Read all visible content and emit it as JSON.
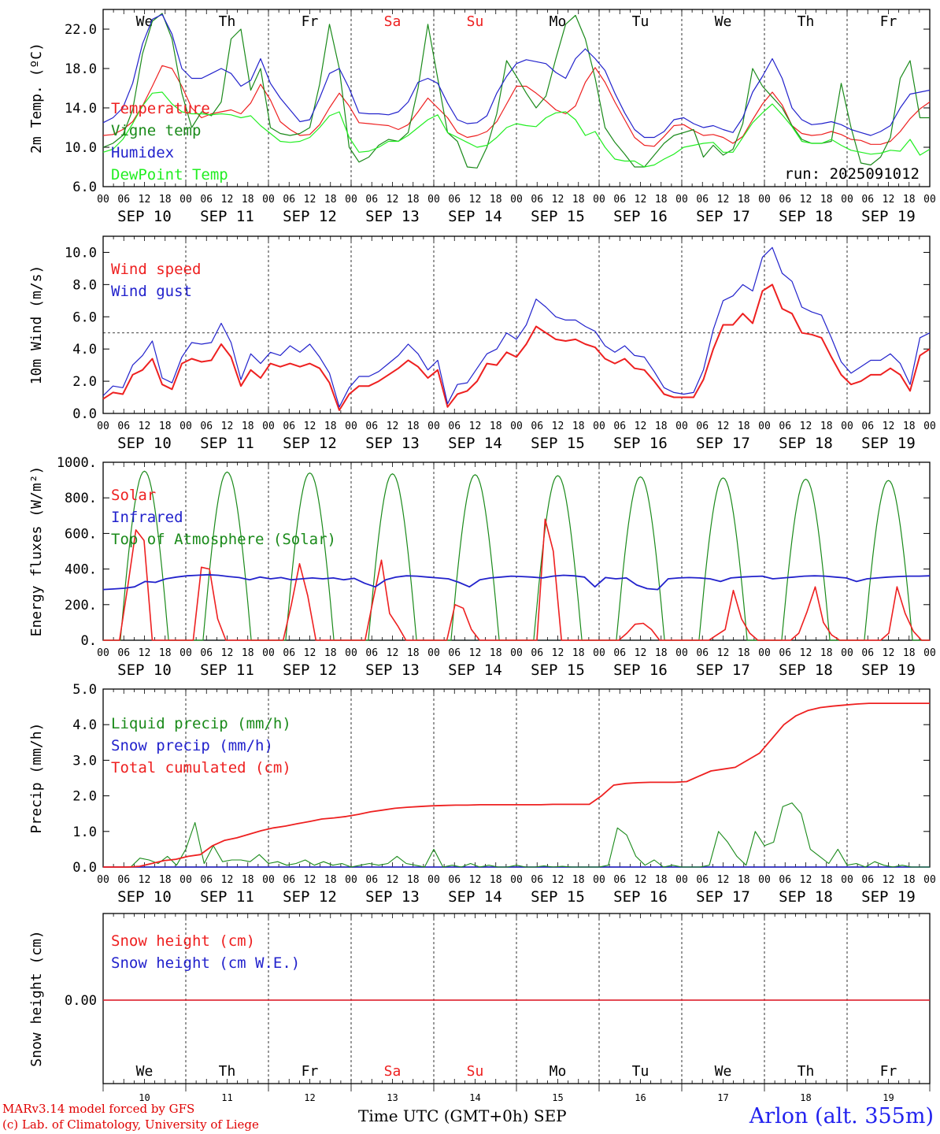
{
  "chart_data": [
    {
      "type": "line",
      "ylabel": "2m Temp. (ºC)",
      "ylim": [
        6.0,
        24.0
      ],
      "yticks": [
        "6.0",
        "10.0",
        "14.0",
        "18.0",
        "22.0"
      ],
      "annotation": "run: 2025091012",
      "series": [
        {
          "name": "Temperature",
          "color": "#ee2020",
          "values": [
            11.2,
            11.3,
            11.8,
            12.6,
            14.2,
            16.2,
            18.3,
            18.0,
            16.2,
            14.0,
            13.0,
            13.4,
            13.6,
            13.8,
            13.4,
            14.5,
            16.4,
            14.8,
            12.6,
            11.8,
            11.2,
            11.3,
            12.3,
            14.0,
            15.5,
            14.2,
            12.5,
            12.4,
            12.3,
            12.2,
            11.8,
            12.3,
            13.6,
            15.0,
            14.0,
            13.0,
            11.5,
            11.0,
            11.2,
            11.6,
            12.6,
            14.4,
            16.2,
            16.2,
            15.5,
            14.7,
            13.8,
            13.4,
            14.2,
            16.6,
            18.1,
            16.6,
            14.6,
            12.8,
            11.0,
            10.2,
            10.1,
            11.1,
            12.2,
            12.3,
            11.7,
            11.2,
            11.3,
            11.0,
            10.4,
            11.1,
            12.8,
            14.4,
            15.6,
            14.3,
            12.2,
            11.4,
            11.2,
            11.3,
            11.6,
            11.3,
            10.8,
            10.7,
            10.3,
            10.3,
            10.6,
            11.6,
            12.9,
            13.9,
            14.6
          ]
        },
        {
          "name": "Vigne temp",
          "color": "#1a8a1a",
          "values": [
            10.0,
            10.4,
            11.2,
            13.8,
            19.5,
            22.8,
            23.6,
            21.0,
            15.5,
            12.0,
            13.6,
            13.2,
            14.6,
            21.0,
            22.0,
            15.8,
            18.0,
            12.0,
            11.4,
            11.2,
            11.4,
            12.0,
            16.4,
            22.5,
            18.0,
            10.0,
            8.5,
            9.0,
            10.2,
            10.8,
            10.6,
            11.5,
            16.0,
            22.5,
            17.0,
            11.5,
            10.6,
            8.0,
            7.9,
            10.0,
            13.4,
            18.8,
            17.2,
            15.5,
            14.0,
            15.2,
            19.0,
            22.5,
            23.4,
            21.0,
            17.0,
            12.0,
            10.5,
            9.3,
            8.0,
            8.0,
            9.2,
            10.4,
            11.2,
            11.5,
            11.8,
            9.0,
            10.2,
            9.2,
            9.8,
            12.4,
            18.0,
            16.2,
            15.1,
            14.0,
            12.2,
            10.8,
            10.4,
            10.4,
            10.6,
            16.5,
            12.0,
            8.4,
            8.2,
            9.0,
            11.0,
            17.0,
            18.8,
            13.0,
            13.0
          ]
        },
        {
          "name": "Humidex",
          "color": "#2222cc",
          "values": [
            12.5,
            13.0,
            14.0,
            16.5,
            20.5,
            23.0,
            23.5,
            21.5,
            18.0,
            17.0,
            17.0,
            17.5,
            18.0,
            17.5,
            16.2,
            16.8,
            19.0,
            16.5,
            15.0,
            13.8,
            12.6,
            12.8,
            15.0,
            17.5,
            18.0,
            16.0,
            13.5,
            13.4,
            13.4,
            13.3,
            13.6,
            14.6,
            16.6,
            17.0,
            16.5,
            14.5,
            12.8,
            12.4,
            12.5,
            13.2,
            15.5,
            17.2,
            18.5,
            18.9,
            18.7,
            18.5,
            17.6,
            17.0,
            19.0,
            20.0,
            19.0,
            17.8,
            15.5,
            13.5,
            11.8,
            11.0,
            11.0,
            11.6,
            12.8,
            13.0,
            12.4,
            12.0,
            12.2,
            11.8,
            11.5,
            13.0,
            15.6,
            17.2,
            19.0,
            17.0,
            14.0,
            12.8,
            12.3,
            12.4,
            12.6,
            12.3,
            11.8,
            11.5,
            11.2,
            11.6,
            12.2,
            14.0,
            15.4,
            15.6,
            15.8
          ]
        },
        {
          "name": "DewPoint Temp",
          "color": "#22ee22",
          "values": [
            9.5,
            9.8,
            10.8,
            12.4,
            14.2,
            15.5,
            15.6,
            14.4,
            13.6,
            13.4,
            13.4,
            13.3,
            13.4,
            13.3,
            13.0,
            13.2,
            12.2,
            11.4,
            10.6,
            10.5,
            10.6,
            11.0,
            12.0,
            13.2,
            13.6,
            11.0,
            9.5,
            9.6,
            10.0,
            10.6,
            10.6,
            11.2,
            12.0,
            12.8,
            13.3,
            11.5,
            11.0,
            10.5,
            10.0,
            10.2,
            11.0,
            12.0,
            12.4,
            12.2,
            12.1,
            13.0,
            13.5,
            13.6,
            12.8,
            11.2,
            11.6,
            10.0,
            8.8,
            8.6,
            8.6,
            8.0,
            8.2,
            8.8,
            9.3,
            10.0,
            10.2,
            10.4,
            10.5,
            9.5,
            9.5,
            11.0,
            12.5,
            13.5,
            14.4,
            13.3,
            12.1,
            10.6,
            10.4,
            10.4,
            10.8,
            10.2,
            9.7,
            9.5,
            9.3,
            9.4,
            9.7,
            9.6,
            10.8,
            9.2,
            9.8
          ]
        }
      ]
    },
    {
      "type": "line",
      "ylabel": "10m Wind (m/s)",
      "ylim": [
        0.0,
        11.0
      ],
      "yticks": [
        "0.0",
        "2.0",
        "4.0",
        "6.0",
        "8.0",
        "10.0"
      ],
      "reference_line": 5.0,
      "series": [
        {
          "name": "Wind speed",
          "color": "#ee2020",
          "values": [
            0.9,
            1.3,
            1.2,
            2.4,
            2.7,
            3.4,
            1.8,
            1.5,
            3.1,
            3.4,
            3.2,
            3.3,
            4.3,
            3.5,
            1.7,
            2.7,
            2.2,
            3.1,
            2.9,
            3.1,
            2.9,
            3.1,
            2.8,
            1.9,
            0.2,
            1.2,
            1.7,
            1.7,
            2.0,
            2.4,
            2.8,
            3.3,
            2.9,
            2.2,
            2.7,
            0.4,
            1.2,
            1.4,
            2.0,
            3.1,
            3.0,
            3.8,
            3.5,
            4.3,
            5.4,
            5.0,
            4.6,
            4.5,
            4.6,
            4.3,
            4.1,
            3.4,
            3.1,
            3.4,
            2.8,
            2.7,
            2.0,
            1.2,
            1.0,
            1.0,
            1.0,
            2.1,
            4.0,
            5.5,
            5.5,
            6.2,
            5.6,
            7.6,
            8.0,
            6.5,
            6.2,
            5.0,
            4.9,
            4.7,
            3.5,
            2.4,
            1.8,
            2.0,
            2.4,
            2.4,
            2.8,
            2.4,
            1.4,
            3.6,
            4.0
          ]
        },
        {
          "name": "Wind gust",
          "color": "#2222cc",
          "values": [
            1.1,
            1.7,
            1.6,
            3.0,
            3.6,
            4.5,
            2.2,
            1.9,
            3.5,
            4.4,
            4.3,
            4.4,
            5.6,
            4.4,
            2.1,
            3.7,
            3.1,
            3.8,
            3.6,
            4.2,
            3.8,
            4.3,
            3.5,
            2.5,
            0.4,
            1.6,
            2.3,
            2.3,
            2.6,
            3.1,
            3.6,
            4.3,
            3.7,
            2.7,
            3.3,
            0.6,
            1.8,
            1.9,
            2.8,
            3.7,
            4.0,
            5.0,
            4.6,
            5.5,
            7.1,
            6.6,
            6.0,
            5.8,
            5.8,
            5.4,
            5.1,
            4.2,
            3.8,
            4.2,
            3.6,
            3.5,
            2.6,
            1.6,
            1.3,
            1.2,
            1.3,
            2.7,
            5.2,
            7.0,
            7.3,
            8.0,
            7.6,
            9.7,
            10.3,
            8.7,
            8.2,
            6.6,
            6.3,
            6.1,
            4.7,
            3.2,
            2.5,
            2.9,
            3.3,
            3.3,
            3.7,
            3.1,
            1.8,
            4.7,
            5.0
          ]
        }
      ]
    },
    {
      "type": "line",
      "ylabel": "Energy fluxes (W/m²)",
      "ylim": [
        0,
        1000
      ],
      "yticks": [
        "0.",
        "200.",
        "400.",
        "600.",
        "800.",
        "1000."
      ],
      "series": [
        {
          "name": "Solar",
          "color": "#ee2020",
          "values": [
            0,
            0,
            0,
            300,
            620,
            560,
            0,
            0,
            0,
            0,
            0,
            0,
            410,
            400,
            120,
            0,
            0,
            0,
            0,
            0,
            0,
            0,
            0,
            200,
            430,
            250,
            0,
            0,
            0,
            0,
            0,
            0,
            0,
            230,
            450,
            150,
            80,
            0,
            0,
            0,
            0,
            0,
            0,
            200,
            180,
            60,
            0,
            0,
            0,
            0,
            0,
            0,
            0,
            0,
            680,
            500,
            0,
            0,
            0,
            0,
            0,
            0,
            0,
            0,
            40,
            90,
            95,
            60,
            0,
            0,
            0,
            0,
            0,
            0,
            0,
            30,
            60,
            280,
            120,
            40,
            0,
            0,
            0,
            0,
            0,
            40,
            160,
            300,
            100,
            30,
            0,
            0,
            0,
            0,
            0,
            0,
            40,
            300,
            150,
            50,
            0,
            0
          ]
        },
        {
          "name": "Infrared",
          "color": "#2222cc",
          "values": [
            285,
            288,
            292,
            300,
            330,
            325,
            345,
            355,
            362,
            365,
            368,
            365,
            358,
            352,
            340,
            355,
            345,
            352,
            340,
            345,
            350,
            345,
            350,
            340,
            348,
            320,
            300,
            340,
            355,
            362,
            360,
            355,
            350,
            345,
            325,
            300,
            340,
            350,
            355,
            360,
            358,
            355,
            350,
            360,
            365,
            362,
            355,
            300,
            352,
            345,
            350,
            310,
            290,
            285,
            345,
            350,
            352,
            350,
            345,
            330,
            350,
            355,
            358,
            360,
            345,
            350,
            355,
            360,
            362,
            360,
            355,
            350,
            330,
            345,
            350,
            355,
            358,
            360,
            360,
            362
          ]
        },
        {
          "name": "Top of Atmosphere (Solar)",
          "color": "#1a8a1a",
          "day_peaks": [
            950,
            945,
            940,
            935,
            930,
            925,
            918,
            912,
            905,
            898
          ]
        }
      ]
    },
    {
      "type": "line",
      "ylabel": "Precip (mm/h)",
      "ylim": [
        0.0,
        5.0
      ],
      "yticks": [
        "0.0",
        "1.0",
        "2.0",
        "3.0",
        "4.0",
        "5.0"
      ],
      "series": [
        {
          "name": "Liquid precip (mm/h)",
          "color": "#1a8a1a",
          "values": [
            0,
            0,
            0,
            0,
            0.25,
            0.2,
            0.1,
            0.3,
            0.05,
            0.5,
            1.25,
            0.1,
            0.6,
            0.15,
            0.2,
            0.2,
            0.15,
            0.35,
            0.1,
            0.15,
            0.05,
            0.1,
            0.2,
            0.05,
            0.15,
            0.05,
            0.1,
            0,
            0.05,
            0.1,
            0.05,
            0.1,
            0.3,
            0.1,
            0.05,
            0,
            0.5,
            0,
            0.05,
            0,
            0.1,
            0,
            0.05,
            0,
            0,
            0.05,
            0,
            0,
            0.03,
            0,
            0.02,
            0,
            0,
            0,
            0,
            0.05,
            1.1,
            0.9,
            0.3,
            0.05,
            0.2,
            0,
            0.05,
            0,
            0,
            0,
            0.05,
            1.0,
            0.7,
            0.3,
            0.05,
            1.0,
            0.6,
            0.7,
            1.7,
            1.8,
            1.5,
            0.5,
            0.3,
            0.1,
            0.5,
            0.05,
            0.1,
            0,
            0.15,
            0.05,
            0,
            0.05,
            0,
            0,
            0
          ]
        },
        {
          "name": "Snow precip (mm/h)",
          "color": "#2222cc",
          "values": [
            0,
            0
          ]
        },
        {
          "name": "Total cumulated (cm)",
          "color": "#ee2020",
          "values": [
            0,
            0,
            0,
            0.02,
            0.1,
            0.18,
            0.22,
            0.3,
            0.35,
            0.6,
            0.75,
            0.82,
            0.92,
            1.02,
            1.1,
            1.15,
            1.22,
            1.28,
            1.35,
            1.38,
            1.42,
            1.48,
            1.55,
            1.6,
            1.65,
            1.68,
            1.7,
            1.72,
            1.73,
            1.74,
            1.74,
            1.75,
            1.75,
            1.75,
            1.75,
            1.75,
            1.75,
            1.76,
            1.76,
            1.76,
            1.76,
            2.0,
            2.3,
            2.35,
            2.37,
            2.38,
            2.38,
            2.38,
            2.4,
            2.55,
            2.7,
            2.75,
            2.8,
            3.0,
            3.2,
            3.6,
            4.0,
            4.25,
            4.4,
            4.48,
            4.52,
            4.55,
            4.58,
            4.6,
            4.6,
            4.6,
            4.6,
            4.6,
            4.6
          ]
        }
      ]
    },
    {
      "type": "line",
      "ylabel": "Snow height (cm)",
      "yticks": [
        "0.00"
      ],
      "series": [
        {
          "name": "Snow height (cm)",
          "color": "#ee2020",
          "values": [
            0,
            0
          ]
        },
        {
          "name": "Snow height (cm W.E.)",
          "color": "#2222cc",
          "values": [
            0,
            0
          ]
        }
      ]
    }
  ],
  "axes": {
    "hour_ticks": [
      "00",
      "06",
      "12",
      "18"
    ],
    "last_hour_tick": "00",
    "dates": [
      "SEP 10",
      "SEP 11",
      "SEP 12",
      "SEP 13",
      "SEP 14",
      "SEP 15",
      "SEP 16",
      "SEP 17",
      "SEP 18",
      "SEP 19"
    ],
    "weekdays": [
      "We",
      "Th",
      "Fr",
      "Sa",
      "Su",
      "Mo",
      "Tu",
      "We",
      "Th",
      "Fr"
    ],
    "weekend_color": "#ee2020",
    "day_numbers": [
      "10",
      "11",
      "12",
      "13",
      "14",
      "15",
      "16",
      "17",
      "18",
      "19"
    ]
  },
  "footer": {
    "credit1": "MARv3.14 model forced by GFS",
    "credit2": "(c) Lab. of Climatology, University of Liege",
    "xtitle": "Time UTC (GMT+0h) SEP",
    "station": "Arlon (alt. 355m)"
  }
}
